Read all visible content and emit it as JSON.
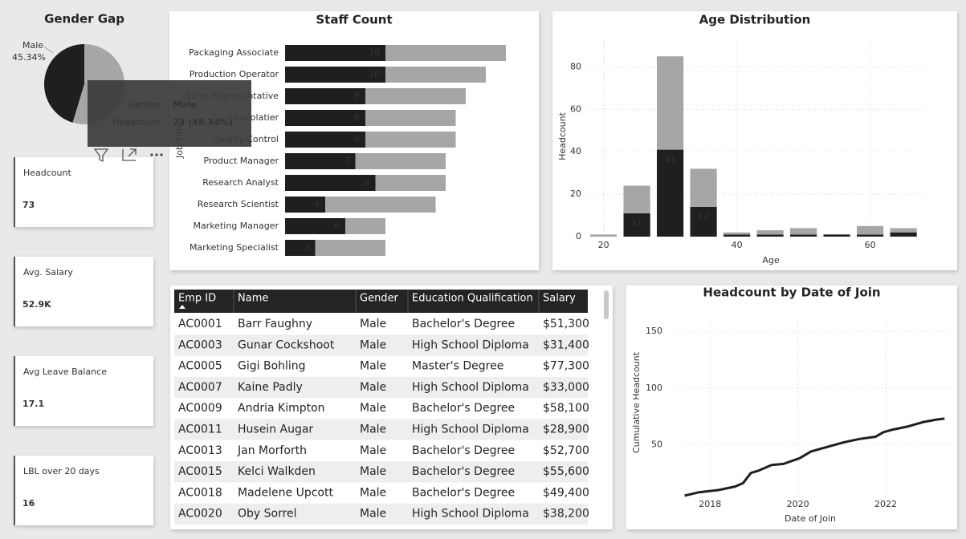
{
  "chart_data": [
    {
      "type": "pie",
      "title": "Gender Gap",
      "categories": [
        "Male",
        null
      ],
      "values": [
        45.34,
        54.66
      ],
      "value_labels": [
        "45.34%",
        null
      ],
      "colors": [
        "#1f1f1f",
        "#a6a6a6"
      ]
    },
    {
      "type": "hbar_stacked",
      "title": "Staff Count",
      "y_label": "Job Title",
      "categories": [
        "Packaging Associate",
        "Production Operator",
        "Sales Representative",
        "Chocolatier",
        "Quality Control",
        "Product Manager",
        "Research Analyst",
        "Research Scientist",
        "Marketing Manager",
        "Marketing Specialist"
      ],
      "series": [
        {
          "color": "#1f1f1f",
          "data_labels": true,
          "values": [
            10,
            10,
            8,
            8,
            8,
            7,
            9,
            4,
            6,
            3
          ]
        },
        {
          "color": "#a6a6a6",
          "data_labels": false,
          "values": [
            12,
            10,
            10,
            9,
            9,
            9,
            7,
            11,
            4,
            7
          ]
        }
      ]
    },
    {
      "type": "bar_stacked",
      "title": "Age Distribution",
      "x_label": "Age",
      "y_label": "Headcount",
      "x": [
        20,
        25,
        30,
        35,
        40,
        45,
        50,
        55,
        60,
        65
      ],
      "xlim": [
        18,
        68
      ],
      "xticks": [
        20,
        40,
        60
      ],
      "ylim": [
        0,
        90
      ],
      "yticks": [
        0,
        20,
        40,
        60,
        80
      ],
      "grid": true,
      "series": [
        {
          "color": "#1f1f1f",
          "values": [
            0,
            11,
            41,
            14,
            1,
            1,
            1,
            1,
            1,
            2
          ],
          "value_labels": [
            null,
            "11",
            "41",
            "14",
            null,
            null,
            null,
            null,
            null,
            null
          ]
        },
        {
          "color": "#a6a6a6",
          "values": [
            1,
            13,
            44,
            18,
            1,
            2,
            3,
            0,
            4,
            2
          ]
        }
      ]
    },
    {
      "type": "line",
      "title": "Headcount by Date of Join",
      "x_label": "Date of Join",
      "y_label": "Cumulative Headcount",
      "x": [
        2017.42,
        2017.75,
        2018.2,
        2018.57,
        2018.75,
        2018.93,
        2019.1,
        2019.4,
        2019.67,
        2020.04,
        2020.3,
        2020.67,
        2021.04,
        2021.4,
        2021.77,
        2021.95,
        2022.13,
        2022.5,
        2022.86,
        2023.14,
        2023.34
      ],
      "values": [
        5,
        8,
        10,
        13,
        16,
        25,
        27,
        32,
        33,
        38,
        44,
        48,
        52,
        55,
        57,
        61,
        63,
        66,
        70,
        72,
        73
      ],
      "color": "#1f1f1f",
      "xlim": [
        2017.3,
        2023.5
      ],
      "xticks": [
        2018,
        2020,
        2022
      ],
      "ylim": [
        0,
        160
      ],
      "yticks": [
        50,
        100,
        150
      ],
      "grid": true
    }
  ],
  "tooltip": {
    "rows": [
      [
        "Gender",
        "Male"
      ],
      [
        "Headcount",
        "73 (45.34%)"
      ]
    ]
  },
  "cards": [
    {
      "label": "Headcount",
      "value": "73"
    },
    {
      "label": "Avg. Salary",
      "value": "52.9K"
    },
    {
      "label": "Avg Leave Balance",
      "value": "17.1"
    },
    {
      "label": "LBL over 20 days",
      "value": "16"
    }
  ],
  "table": {
    "columns": [
      "Emp ID",
      "Name",
      "Gender",
      "Education Qualification",
      "Salary"
    ],
    "rows": [
      [
        "AC0001",
        "Barr Faughny",
        "Male",
        "Bachelor's Degree",
        "$51,300"
      ],
      [
        "AC0003",
        "Gunar Cockshoot",
        "Male",
        "High School Diploma",
        "$31,400"
      ],
      [
        "AC0005",
        "Gigi Bohling",
        "Male",
        "Master's Degree",
        "$77,300"
      ],
      [
        "AC0007",
        "Kaine Padly",
        "Male",
        "High School Diploma",
        "$33,000"
      ],
      [
        "AC0009",
        "Andria Kimpton",
        "Male",
        "Bachelor's Degree",
        "$58,100"
      ],
      [
        "AC0011",
        "Husein Augar",
        "Male",
        "High School Diploma",
        "$28,900"
      ],
      [
        "AC0013",
        "Jan Morforth",
        "Male",
        "Bachelor's Degree",
        "$52,700"
      ],
      [
        "AC0015",
        "Kelci Walkden",
        "Male",
        "Bachelor's Degree",
        "$55,600"
      ],
      [
        "AC0018",
        "Madelene Upcott",
        "Male",
        "Bachelor's Degree",
        "$49,400"
      ],
      [
        "AC0020",
        "Oby Sorrel",
        "Male",
        "High School Diploma",
        "$38,200"
      ]
    ]
  }
}
